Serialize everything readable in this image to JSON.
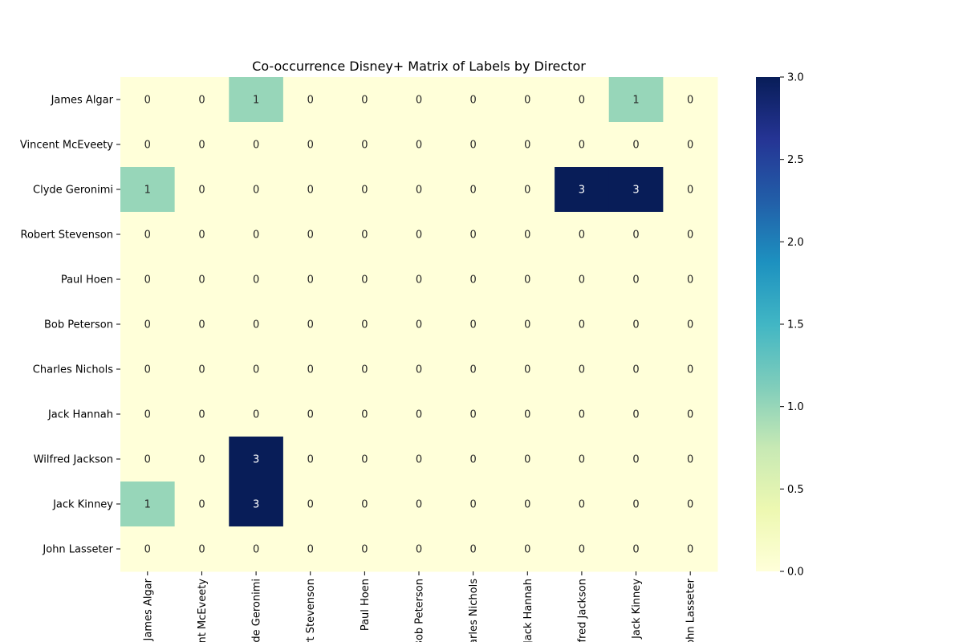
{
  "chart_data": {
    "type": "heatmap",
    "title": "Co-occurrence Disney+ Matrix of Labels by Director",
    "xlabel": "",
    "ylabel": "",
    "row_labels": [
      "James Algar",
      "Vincent McEveety",
      "Clyde Geronimi",
      "Robert Stevenson",
      "Paul Hoen",
      "Bob Peterson",
      "Charles Nichols",
      "Jack Hannah",
      "Wilfred Jackson",
      "Jack Kinney",
      "John Lasseter"
    ],
    "col_labels": [
      "James Algar",
      "Vincent McEveety",
      "Clyde Geronimi",
      "Robert Stevenson",
      "Paul Hoen",
      "Bob Peterson",
      "Charles Nichols",
      "Jack Hannah",
      "Wilfred Jackson",
      "Jack Kinney",
      "John Lasseter"
    ],
    "values": [
      [
        0,
        0,
        1,
        0,
        0,
        0,
        0,
        0,
        0,
        1,
        0
      ],
      [
        0,
        0,
        0,
        0,
        0,
        0,
        0,
        0,
        0,
        0,
        0
      ],
      [
        1,
        0,
        0,
        0,
        0,
        0,
        0,
        0,
        3,
        3,
        0
      ],
      [
        0,
        0,
        0,
        0,
        0,
        0,
        0,
        0,
        0,
        0,
        0
      ],
      [
        0,
        0,
        0,
        0,
        0,
        0,
        0,
        0,
        0,
        0,
        0
      ],
      [
        0,
        0,
        0,
        0,
        0,
        0,
        0,
        0,
        0,
        0,
        0
      ],
      [
        0,
        0,
        0,
        0,
        0,
        0,
        0,
        0,
        0,
        0,
        0
      ],
      [
        0,
        0,
        0,
        0,
        0,
        0,
        0,
        0,
        0,
        0,
        0
      ],
      [
        0,
        0,
        3,
        0,
        0,
        0,
        0,
        0,
        0,
        0,
        0
      ],
      [
        1,
        0,
        3,
        0,
        0,
        0,
        0,
        0,
        0,
        0,
        0
      ],
      [
        0,
        0,
        0,
        0,
        0,
        0,
        0,
        0,
        0,
        0,
        0
      ]
    ],
    "colormap": "YlGnBu",
    "vmin": 0,
    "vmax": 3,
    "colorbar_ticks": [
      "0.0",
      "0.5",
      "1.0",
      "1.5",
      "2.0",
      "2.5",
      "3.0"
    ],
    "annotated": true,
    "grid": false
  }
}
